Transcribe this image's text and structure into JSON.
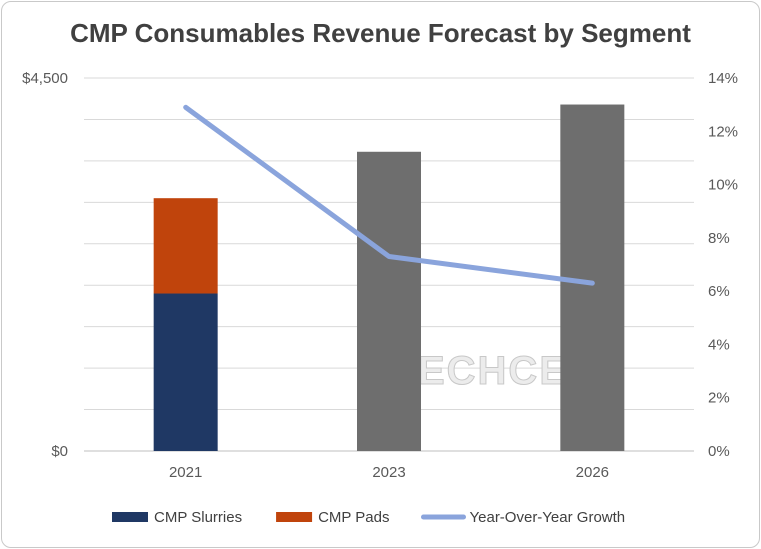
{
  "chart_data": {
    "type": "bar",
    "title": "CMP Consumables Revenue Forecast by Segment",
    "categories": [
      "2021",
      "2023",
      "2026"
    ],
    "stacked": true,
    "series": [
      {
        "name": "CMP Slurries",
        "color": "#1f3864",
        "values": [
          1900,
          null,
          null
        ]
      },
      {
        "name": "CMP Pads",
        "color": "#c0440c",
        "values": [
          1150,
          null,
          null
        ]
      },
      {
        "name": "",
        "color": "#6e6e6e",
        "values": [
          null,
          3610,
          4180
        ]
      }
    ],
    "line_series": {
      "name": "Year-Over-Year Growth",
      "color": "#8aa4dc",
      "axis": "right",
      "values": [
        0.129,
        0.073,
        0.063
      ]
    },
    "y_left": {
      "min": 0,
      "max": 4500,
      "tick_labels": [
        "$0",
        "$4,500"
      ]
    },
    "y_right": {
      "min": 0,
      "max": 0.14,
      "tick_labels": [
        "0%",
        "2%",
        "4%",
        "6%",
        "8%",
        "10%",
        "12%",
        "14%"
      ]
    },
    "grid": true,
    "legend": "bottom",
    "watermark": "TECHCET"
  }
}
